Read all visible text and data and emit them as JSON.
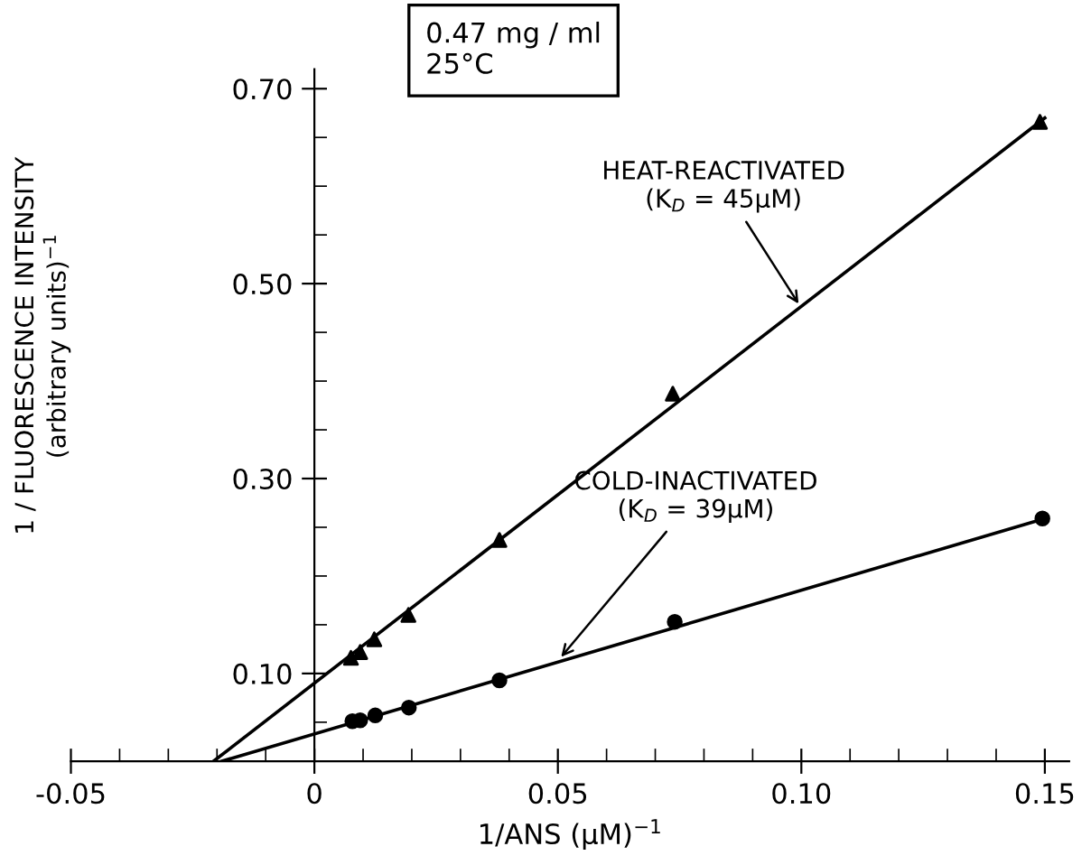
{
  "chart_data": {
    "type": "scatter",
    "xlabel": "1/ANS (μM)$^{−1}$",
    "ylabel": "1 / FLUORESCENCE INTENSITY\n(arbitrary units)$^{−1}$",
    "xlim": [
      -0.05,
      0.155
    ],
    "ylim": [
      0.01,
      0.72
    ],
    "xticks": [
      {
        "value": -0.05,
        "label": "-0.05"
      },
      0,
      0.05,
      {
        "value": 0.1,
        "label": "0.10"
      },
      0.15
    ],
    "yticks": [
      {
        "value": 0.1,
        "label": "0.10"
      },
      {
        "value": 0.3,
        "label": "0.30"
      },
      {
        "value": 0.5,
        "label": "0.50"
      },
      {
        "value": 0.7,
        "label": "0.70"
      }
    ],
    "grid": false,
    "legend": false,
    "series": [
      {
        "marker": "triangle",
        "color": "#000000",
        "x": [
          0.0075,
          0.0094,
          0.0123,
          0.0193,
          0.038,
          0.0736,
          0.149
        ],
        "values": [
          0.116,
          0.122,
          0.135,
          0.16,
          0.237,
          0.387,
          0.666
        ]
      },
      {
        "marker": "circle",
        "color": "#000000",
        "x": [
          0.0078,
          0.0094,
          0.0125,
          0.0194,
          0.038,
          0.074,
          0.1495
        ],
        "values": [
          0.051,
          0.052,
          0.057,
          0.065,
          0.093,
          0.153,
          0.259
        ]
      },
      {
        "type": "line",
        "color": "#000000",
        "x": [
          -0.0207,
          0.15
        ],
        "values": [
          0.01,
          0.67
        ]
      },
      {
        "type": "line",
        "color": "#000000",
        "x": [
          -0.019,
          0.15
        ],
        "values": [
          0.01,
          0.259
        ]
      }
    ],
    "annotations": [
      {
        "text": "HEAT-REACTIVATED\n(K$_{D}$ = 45μM)",
        "x": 0.1,
        "y": 0.475
      },
      {
        "text": "COLD-INACTIVATED\n(K$_{D}$ = 39μM)",
        "x": 0.05,
        "y": 0.113
      },
      "0.47 mg / ml\n25°C"
    ]
  }
}
